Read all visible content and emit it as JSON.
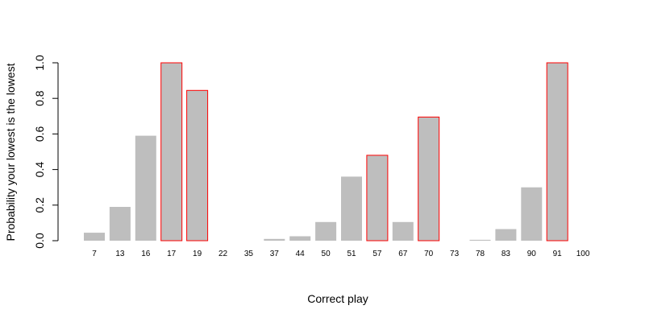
{
  "chart_data": {
    "type": "bar",
    "xlabel": "Correct play",
    "ylabel": "Probability your lowest is the lowest",
    "ylim": [
      0,
      1
    ],
    "yticks": [
      "0.0",
      "0.2",
      "0.4",
      "0.6",
      "0.8",
      "1.0"
    ],
    "grid": false,
    "categories": [
      "7",
      "13",
      "16",
      "17",
      "19",
      "22",
      "35",
      "37",
      "44",
      "50",
      "51",
      "57",
      "67",
      "70",
      "73",
      "78",
      "83",
      "90",
      "91",
      "100"
    ],
    "values": [
      0.045,
      0.19,
      0.59,
      1.0,
      0.845,
      0,
      0,
      0.01,
      0.025,
      0.105,
      0.36,
      0.48,
      0.105,
      0.695,
      0,
      0.005,
      0.065,
      0.3,
      1.0,
      0
    ],
    "highlighted": [
      false,
      false,
      false,
      true,
      true,
      false,
      false,
      false,
      false,
      false,
      false,
      true,
      false,
      true,
      false,
      false,
      false,
      false,
      true,
      false
    ],
    "colors": {
      "bar_fill": "#bebebe",
      "highlight_border": "#ff0000",
      "axis": "#000000"
    }
  }
}
